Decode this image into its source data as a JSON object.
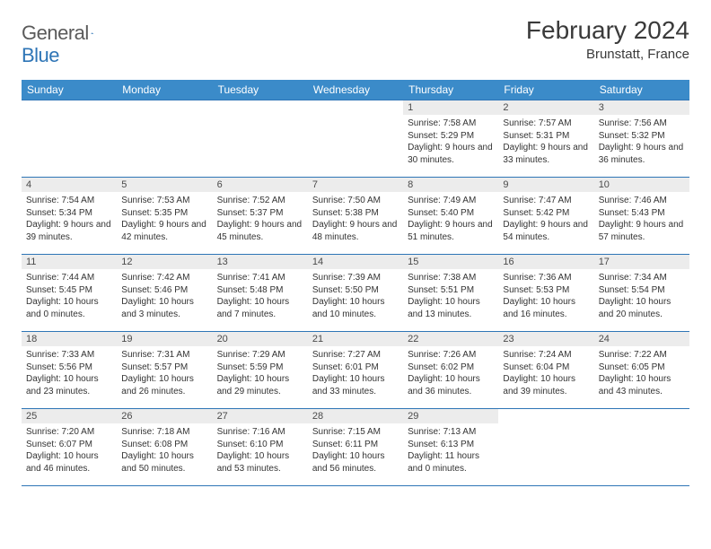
{
  "logo": {
    "textA": "General",
    "textB": "Blue"
  },
  "title": "February 2024",
  "location": "Brunstatt, France",
  "colors": {
    "header_bg": "#3b8bc9",
    "header_text": "#ffffff",
    "border": "#2e75b6",
    "daynum_bg": "#ececec",
    "text": "#333333",
    "logo_gray": "#5a5a5a",
    "logo_blue": "#2e75b6"
  },
  "weekdays": [
    "Sunday",
    "Monday",
    "Tuesday",
    "Wednesday",
    "Thursday",
    "Friday",
    "Saturday"
  ],
  "days": [
    {
      "n": "1",
      "sr": "7:58 AM",
      "ss": "5:29 PM",
      "dl": "9 hours and 30 minutes."
    },
    {
      "n": "2",
      "sr": "7:57 AM",
      "ss": "5:31 PM",
      "dl": "9 hours and 33 minutes."
    },
    {
      "n": "3",
      "sr": "7:56 AM",
      "ss": "5:32 PM",
      "dl": "9 hours and 36 minutes."
    },
    {
      "n": "4",
      "sr": "7:54 AM",
      "ss": "5:34 PM",
      "dl": "9 hours and 39 minutes."
    },
    {
      "n": "5",
      "sr": "7:53 AM",
      "ss": "5:35 PM",
      "dl": "9 hours and 42 minutes."
    },
    {
      "n": "6",
      "sr": "7:52 AM",
      "ss": "5:37 PM",
      "dl": "9 hours and 45 minutes."
    },
    {
      "n": "7",
      "sr": "7:50 AM",
      "ss": "5:38 PM",
      "dl": "9 hours and 48 minutes."
    },
    {
      "n": "8",
      "sr": "7:49 AM",
      "ss": "5:40 PM",
      "dl": "9 hours and 51 minutes."
    },
    {
      "n": "9",
      "sr": "7:47 AM",
      "ss": "5:42 PM",
      "dl": "9 hours and 54 minutes."
    },
    {
      "n": "10",
      "sr": "7:46 AM",
      "ss": "5:43 PM",
      "dl": "9 hours and 57 minutes."
    },
    {
      "n": "11",
      "sr": "7:44 AM",
      "ss": "5:45 PM",
      "dl": "10 hours and 0 minutes."
    },
    {
      "n": "12",
      "sr": "7:42 AM",
      "ss": "5:46 PM",
      "dl": "10 hours and 3 minutes."
    },
    {
      "n": "13",
      "sr": "7:41 AM",
      "ss": "5:48 PM",
      "dl": "10 hours and 7 minutes."
    },
    {
      "n": "14",
      "sr": "7:39 AM",
      "ss": "5:50 PM",
      "dl": "10 hours and 10 minutes."
    },
    {
      "n": "15",
      "sr": "7:38 AM",
      "ss": "5:51 PM",
      "dl": "10 hours and 13 minutes."
    },
    {
      "n": "16",
      "sr": "7:36 AM",
      "ss": "5:53 PM",
      "dl": "10 hours and 16 minutes."
    },
    {
      "n": "17",
      "sr": "7:34 AM",
      "ss": "5:54 PM",
      "dl": "10 hours and 20 minutes."
    },
    {
      "n": "18",
      "sr": "7:33 AM",
      "ss": "5:56 PM",
      "dl": "10 hours and 23 minutes."
    },
    {
      "n": "19",
      "sr": "7:31 AM",
      "ss": "5:57 PM",
      "dl": "10 hours and 26 minutes."
    },
    {
      "n": "20",
      "sr": "7:29 AM",
      "ss": "5:59 PM",
      "dl": "10 hours and 29 minutes."
    },
    {
      "n": "21",
      "sr": "7:27 AM",
      "ss": "6:01 PM",
      "dl": "10 hours and 33 minutes."
    },
    {
      "n": "22",
      "sr": "7:26 AM",
      "ss": "6:02 PM",
      "dl": "10 hours and 36 minutes."
    },
    {
      "n": "23",
      "sr": "7:24 AM",
      "ss": "6:04 PM",
      "dl": "10 hours and 39 minutes."
    },
    {
      "n": "24",
      "sr": "7:22 AM",
      "ss": "6:05 PM",
      "dl": "10 hours and 43 minutes."
    },
    {
      "n": "25",
      "sr": "7:20 AM",
      "ss": "6:07 PM",
      "dl": "10 hours and 46 minutes."
    },
    {
      "n": "26",
      "sr": "7:18 AM",
      "ss": "6:08 PM",
      "dl": "10 hours and 50 minutes."
    },
    {
      "n": "27",
      "sr": "7:16 AM",
      "ss": "6:10 PM",
      "dl": "10 hours and 53 minutes."
    },
    {
      "n": "28",
      "sr": "7:15 AM",
      "ss": "6:11 PM",
      "dl": "10 hours and 56 minutes."
    },
    {
      "n": "29",
      "sr": "7:13 AM",
      "ss": "6:13 PM",
      "dl": "11 hours and 0 minutes."
    }
  ],
  "first_weekday_index": 4,
  "labels": {
    "sunrise": "Sunrise: ",
    "sunset": "Sunset: ",
    "daylight": "Daylight: "
  }
}
